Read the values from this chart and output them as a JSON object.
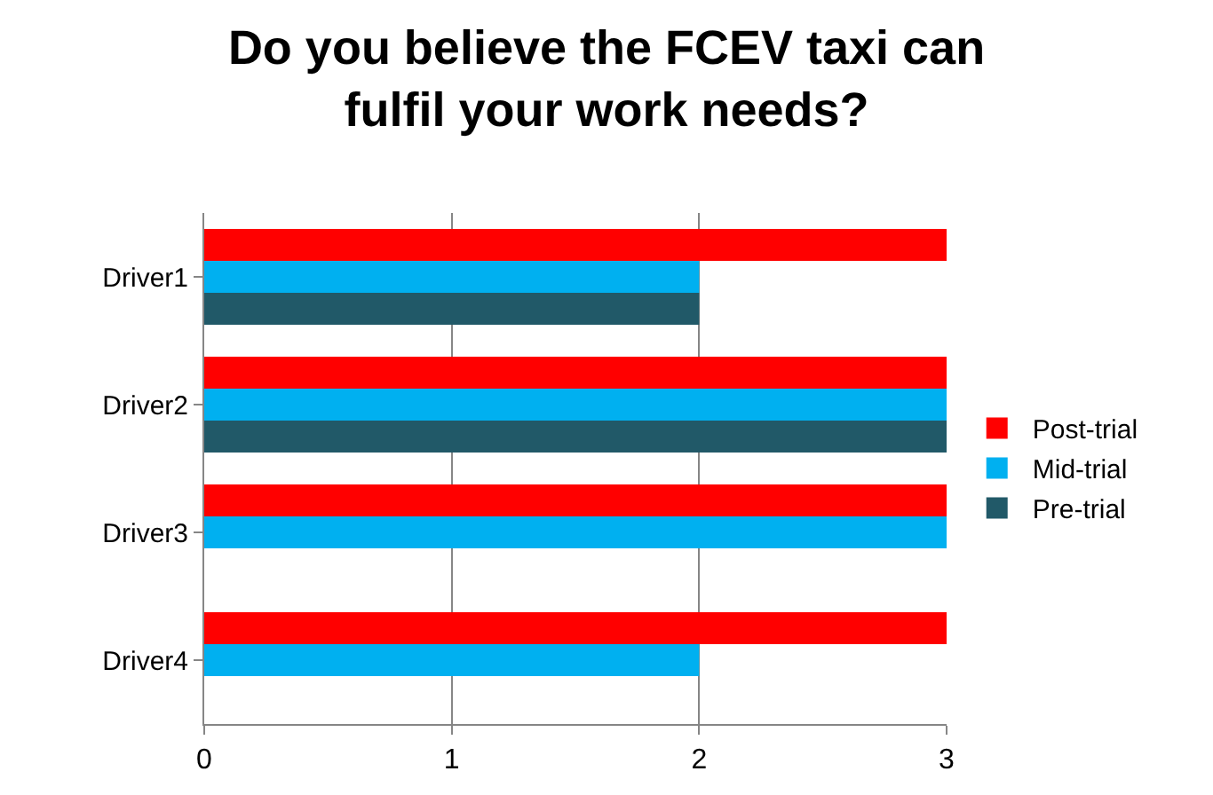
{
  "chart_data": {
    "type": "bar",
    "orientation": "horizontal",
    "title": "Do you believe the FCEV taxi can fulfil your work needs?",
    "categories": [
      "Driver1",
      "Driver2",
      "Driver3",
      "Driver4"
    ],
    "series": [
      {
        "name": "Post-trial",
        "color": "#ff0000",
        "values": [
          3,
          3,
          3,
          3
        ]
      },
      {
        "name": "Mid-trial",
        "color": "#00b0f0",
        "values": [
          2,
          3,
          3,
          2
        ]
      },
      {
        "name": "Pre-trial",
        "color": "#215968",
        "values": [
          2,
          3,
          null,
          null
        ]
      }
    ],
    "xlim": [
      0,
      3
    ],
    "xticks": [
      0,
      1,
      2,
      3
    ],
    "grid": "x",
    "legend": "right"
  }
}
